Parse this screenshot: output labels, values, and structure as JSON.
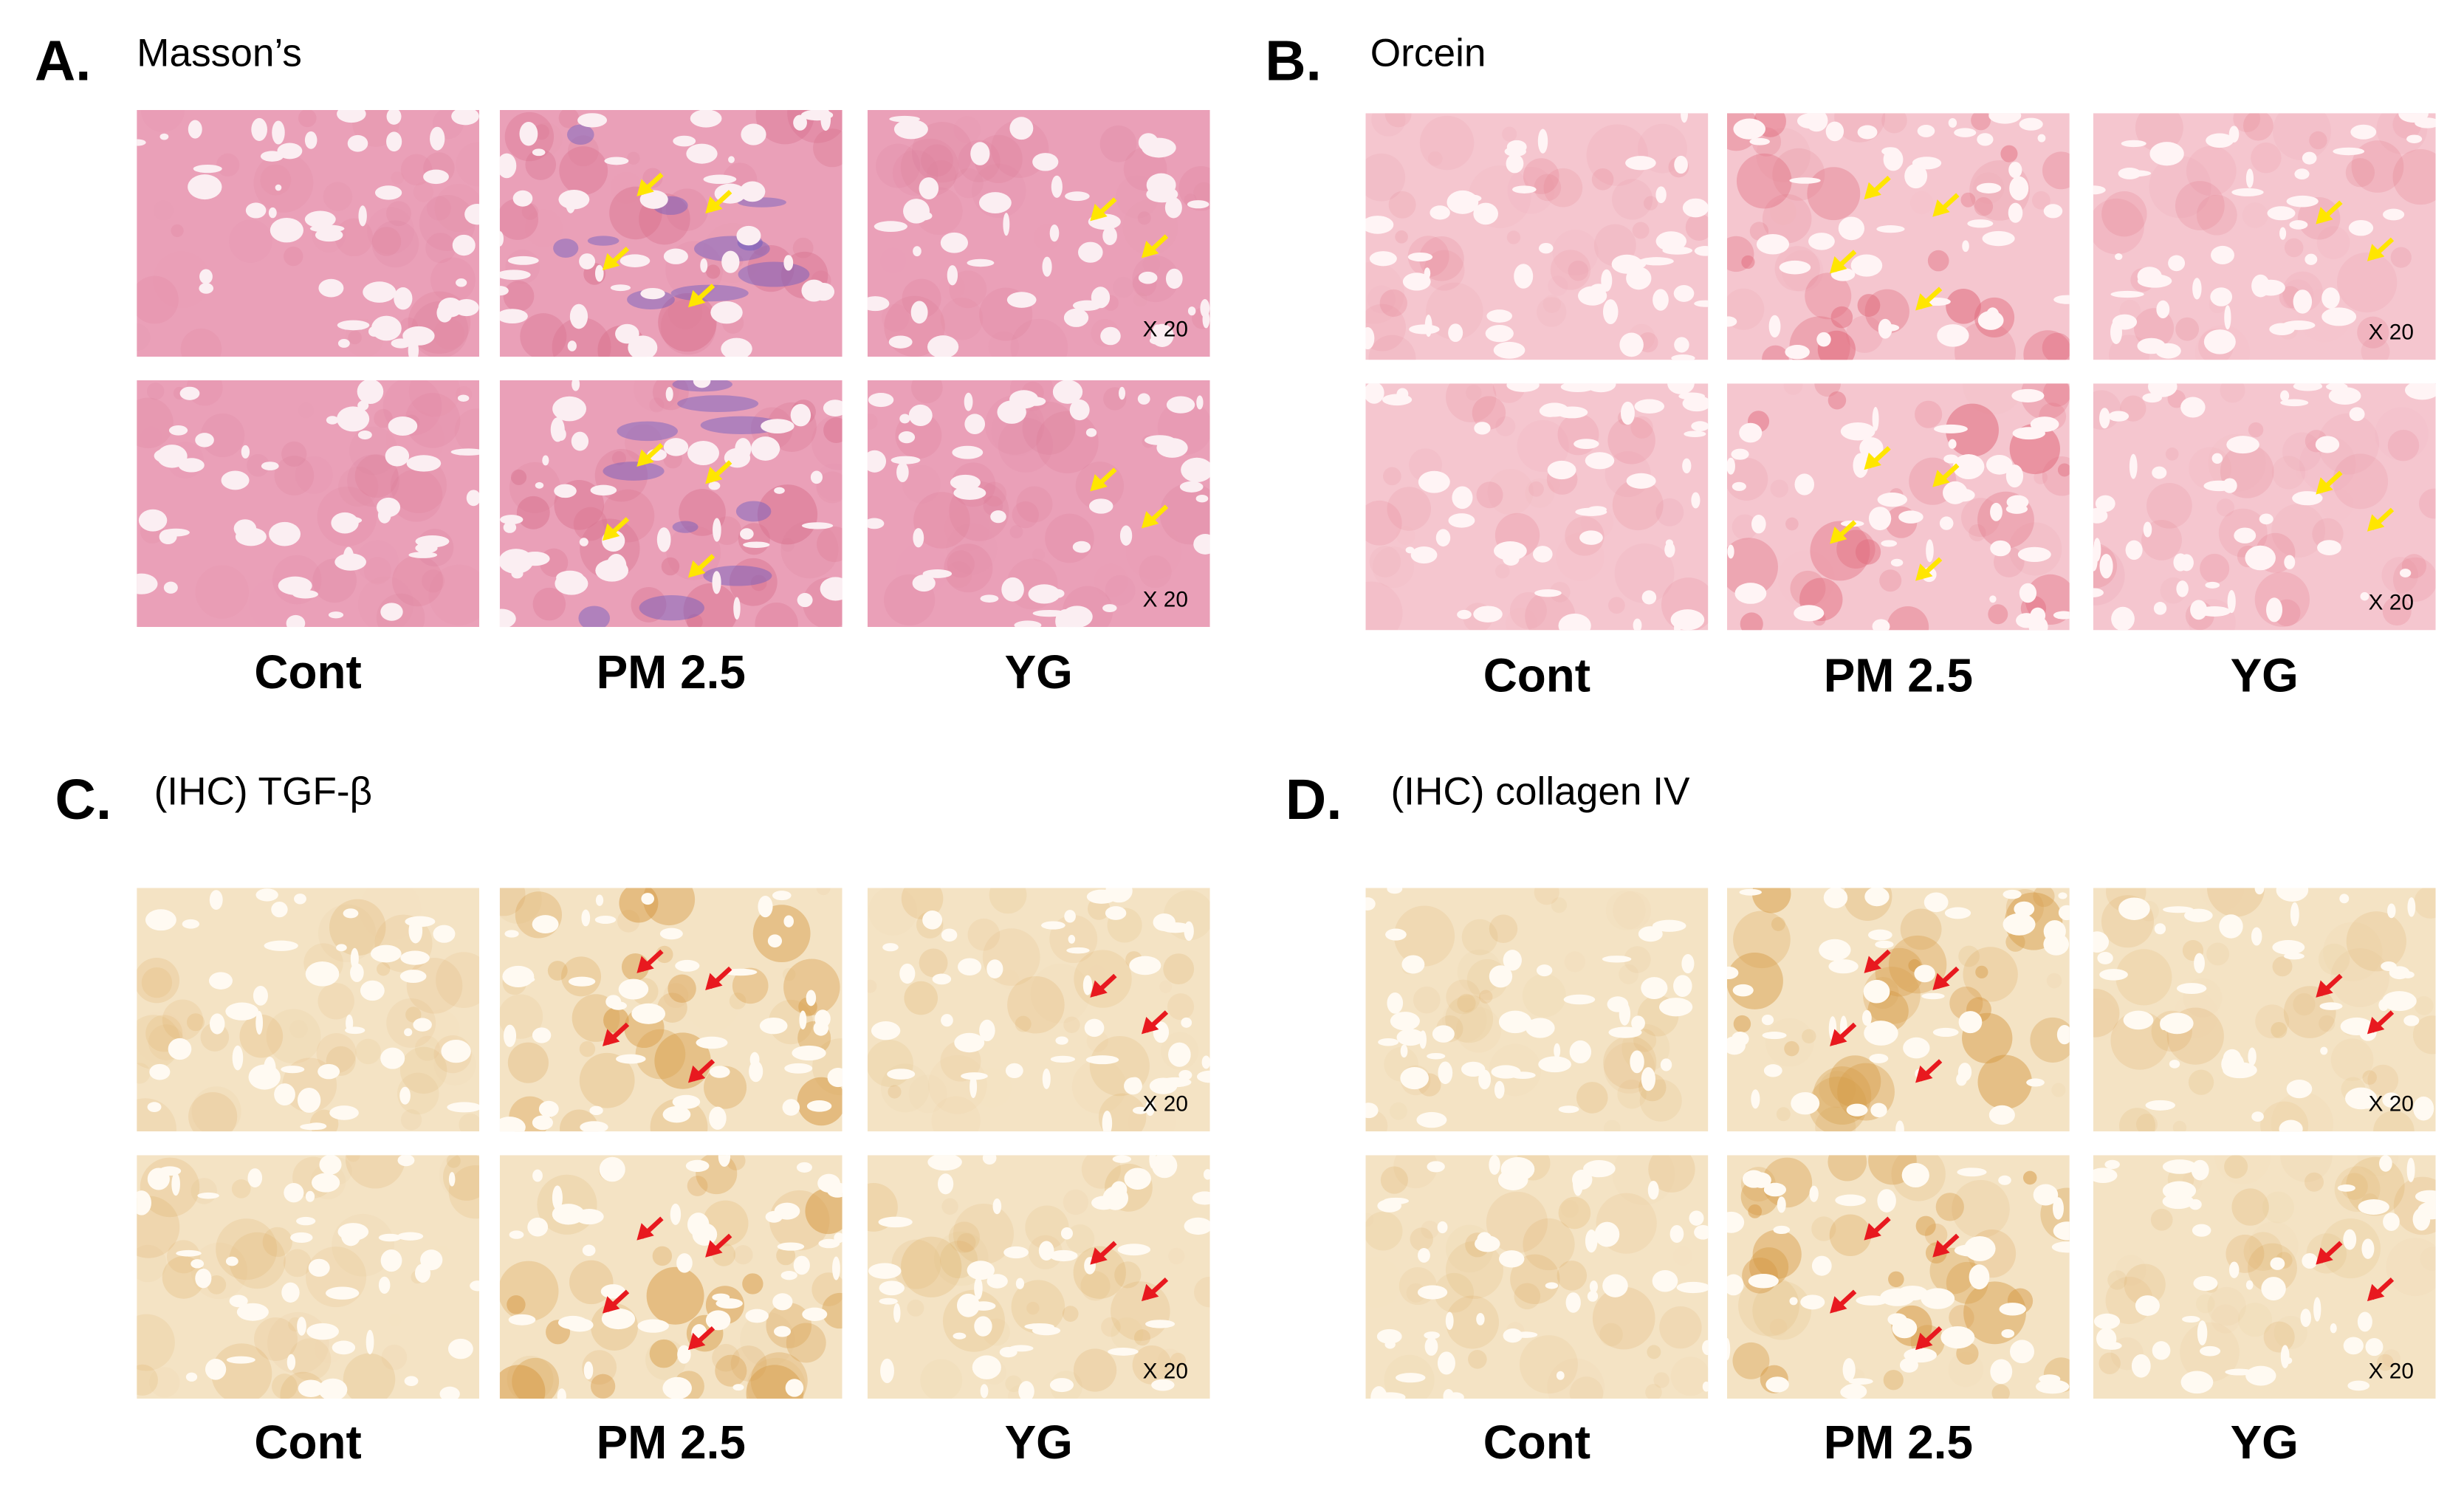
{
  "panels": [
    {
      "letter": "A.",
      "title": "Masson’s",
      "columns": [
        "Cont",
        "PM 2.5",
        "YG"
      ],
      "magnification": [
        "X 20",
        "X 20"
      ]
    },
    {
      "letter": "B.",
      "title": "Orcein",
      "columns": [
        "Cont",
        "PM 2.5",
        "YG"
      ],
      "magnification": [
        "X 20",
        "X 20"
      ]
    },
    {
      "letter": "C.",
      "title": "(IHC) TGF-β",
      "columns": [
        "Cont",
        "PM 2.5",
        "YG"
      ],
      "magnification": [
        "X 20",
        "X 20"
      ]
    },
    {
      "letter": "D.",
      "title": "(IHC) collagen IV",
      "columns": [
        "Cont",
        "PM 2.5",
        "YG"
      ],
      "magnification": [
        "X 20",
        "X 20"
      ]
    }
  ]
}
